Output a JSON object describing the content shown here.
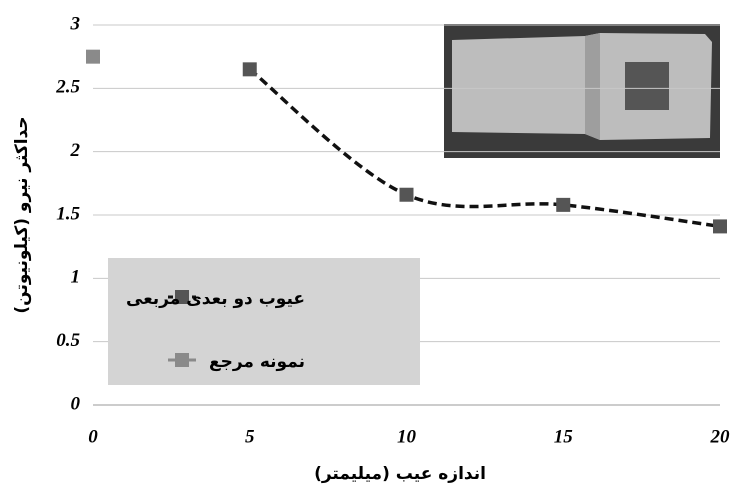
{
  "chart_data": {
    "type": "line",
    "x_label": "اندازه عیب (میلیمتر)",
    "y_label": "حداکثر نیرو (کیلونیوتن)",
    "series": [
      {
        "name": "عیوب دو بعدی مربعی",
        "color": "#555555",
        "line_color": "#111111",
        "dashed": true,
        "smooth": true,
        "x": [
          5,
          10,
          15,
          20
        ],
        "values": [
          2.65,
          1.66,
          1.58,
          1.41
        ]
      },
      {
        "name": "نمونه مرجع",
        "color": "#8a8a8a",
        "x": [
          0
        ],
        "values": [
          2.75
        ]
      }
    ],
    "xlim": [
      0,
      20
    ],
    "xticks": [
      0,
      5,
      10,
      15,
      20
    ],
    "ylim": [
      0,
      3
    ],
    "yticks": [
      0,
      0.5,
      1,
      1.5,
      2,
      2.5,
      3
    ],
    "grid": true
  }
}
